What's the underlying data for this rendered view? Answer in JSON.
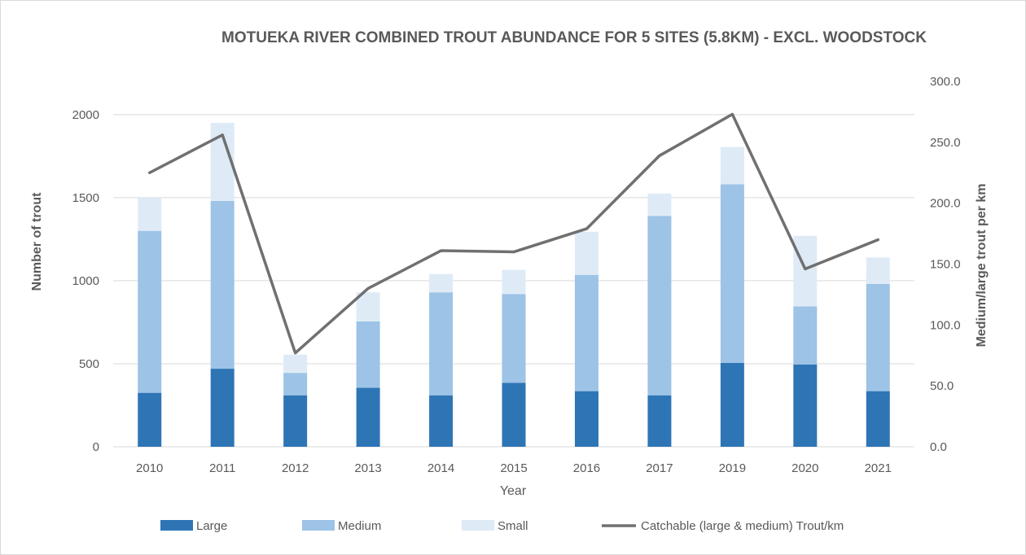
{
  "chart_data": {
    "type": "bar",
    "title": "MOTUEKA RIVER COMBINED TROUT ABUNDANCE FOR 5 SITES (5.8KM) - EXCL. WOODSTOCK",
    "xlabel": "Year",
    "ylabel": "Number of trout",
    "y2label": "Medium/large trout per km",
    "ylim": [
      0,
      2200
    ],
    "y2lim": [
      0,
      300
    ],
    "yticks": [
      "0",
      "500",
      "1000",
      "1500",
      "2000"
    ],
    "y2ticks": [
      "0.0",
      "50.0",
      "100.0",
      "150.0",
      "200.0",
      "250.0",
      "300.0"
    ],
    "grid": true,
    "stacked": true,
    "legend_position": "bottom",
    "categories": [
      "2010",
      "2011",
      "2012",
      "2013",
      "2014",
      "2015",
      "2016",
      "2017",
      "2019",
      "2020",
      "2021"
    ],
    "series": [
      {
        "name": "Large",
        "kind": "bar",
        "axis": "left",
        "color": "#2e75b6",
        "values": [
          325,
          470,
          310,
          355,
          310,
          385,
          335,
          310,
          505,
          495,
          335
        ]
      },
      {
        "name": "Medium",
        "kind": "bar",
        "axis": "left",
        "color": "#9dc3e6",
        "values": [
          975,
          1010,
          135,
          400,
          620,
          535,
          700,
          1080,
          1075,
          350,
          645
        ]
      },
      {
        "name": "Small",
        "kind": "bar",
        "axis": "left",
        "color": "#deebf7",
        "values": [
          200,
          470,
          110,
          175,
          110,
          145,
          260,
          135,
          225,
          425,
          160
        ]
      },
      {
        "name": "Catchable (large & medium) Trout/km",
        "kind": "line",
        "axis": "right",
        "color": "#707070",
        "values": [
          225,
          256,
          77,
          130,
          161,
          160,
          179,
          239,
          273,
          146,
          170
        ]
      }
    ]
  }
}
